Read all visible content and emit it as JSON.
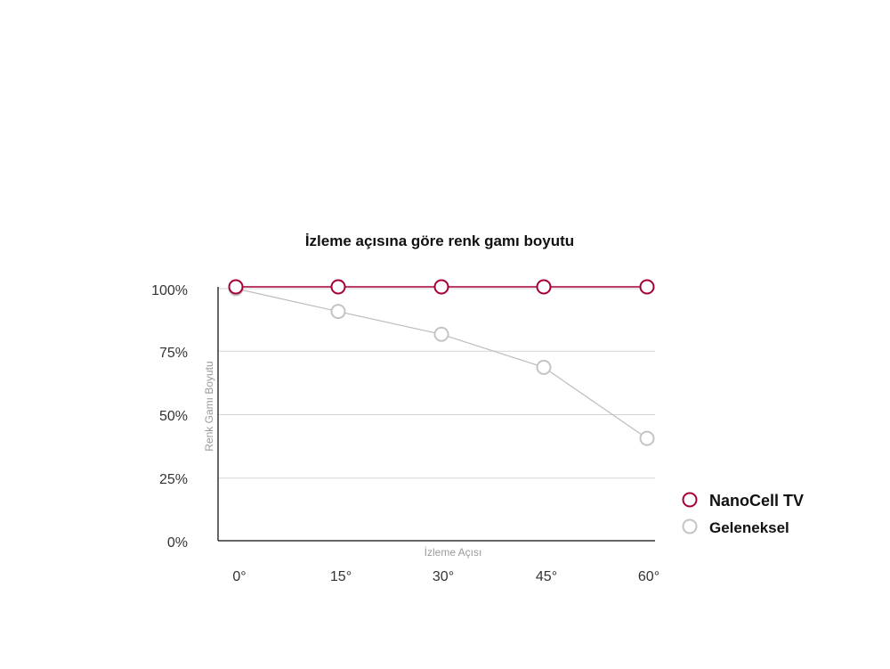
{
  "chart_data": {
    "type": "line",
    "title": "İzleme açısına göre renk gamı boyutu",
    "xlabel": "İzleme Açısı",
    "ylabel": "Renk Gamı Boyutu",
    "categories": [
      "0°",
      "15°",
      "30°",
      "45°",
      "60°"
    ],
    "yticks": [
      "100%",
      "75%",
      "50%",
      "25%",
      "0%"
    ],
    "ytick_values": [
      100,
      75,
      50,
      25,
      0
    ],
    "ylim": [
      0,
      100
    ],
    "grid": true,
    "legend_position": "right",
    "series": [
      {
        "name": "NanoCell TV",
        "values": [
          100,
          100,
          100,
          100,
          100
        ],
        "color": "#a50034"
      },
      {
        "name": "Geleneksel",
        "values": [
          100,
          91,
          82,
          69,
          41
        ],
        "color": "#c4c4c4"
      }
    ]
  }
}
